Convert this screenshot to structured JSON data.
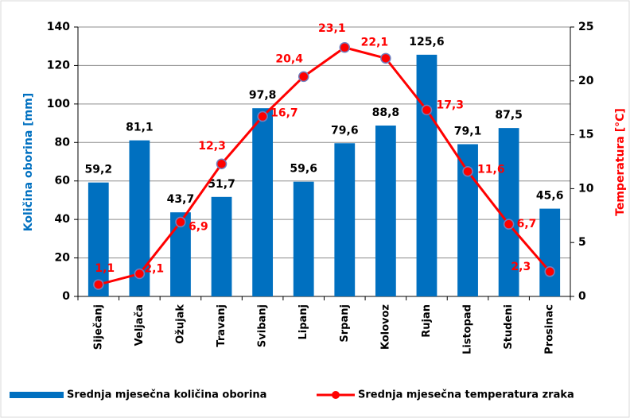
{
  "chart_data": {
    "type": "bar",
    "categories": [
      "Siječanj",
      "Veljača",
      "Ožujak",
      "Travanj",
      "Svibanj",
      "Lipanj",
      "Srpanj",
      "Kolovoz",
      "Rujan",
      "Listopad",
      "Studeni",
      "Prosinac"
    ],
    "series": [
      {
        "name": "Srednja mjesečna količina oborina",
        "type": "bar",
        "color": "#0070c0",
        "values": [
          59.2,
          81.1,
          43.7,
          51.7,
          97.8,
          59.6,
          79.6,
          88.8,
          125.6,
          79.1,
          87.5,
          45.6
        ],
        "value_labels": [
          "59,2",
          "81,1",
          "43,7",
          "51,7",
          "97,8",
          "59,6",
          "79,6",
          "88,8",
          "125,6",
          "79,1",
          "87,5",
          "45,6"
        ]
      },
      {
        "name": "Srednja mjesečna temperatura zraka",
        "type": "line",
        "axis": "y2",
        "color": "#ff0000",
        "values": [
          1.1,
          2.1,
          6.9,
          12.3,
          16.7,
          20.4,
          23.1,
          22.1,
          17.3,
          11.6,
          6.7,
          2.3
        ],
        "value_labels": [
          "1,1",
          "2,1",
          "6,9",
          "12,3",
          "16,7",
          "20,4",
          "23,1",
          "22,1",
          "17,3",
          "11,6",
          "6,7",
          "2,3"
        ]
      }
    ],
    "y_label": "Količina oborina [mm]",
    "y2_label": "Temperatura [°C]",
    "ylim": [
      0,
      140
    ],
    "yticks": [
      0,
      20,
      40,
      60,
      80,
      100,
      120,
      140
    ],
    "y2lim": [
      0,
      25
    ],
    "y2ticks": [
      0,
      5,
      10,
      15,
      20,
      25
    ],
    "grid": true
  }
}
